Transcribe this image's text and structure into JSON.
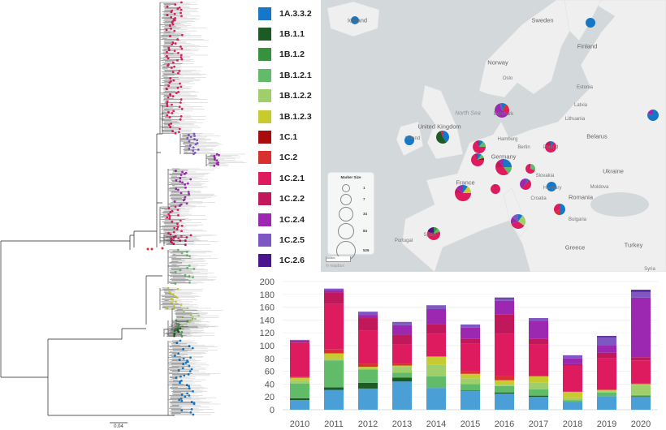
{
  "legend": {
    "items": [
      {
        "label": "1A.3.3.2",
        "color": "#1577c6"
      },
      {
        "label": "1B.1.1",
        "color": "#1e5b24"
      },
      {
        "label": "1B.1.2",
        "color": "#37913d"
      },
      {
        "label": "1B.1.2.1",
        "color": "#62bb69"
      },
      {
        "label": "1B.1.2.2",
        "color": "#9fcf6b"
      },
      {
        "label": "1B.1.2.3",
        "color": "#c7cb30"
      },
      {
        "label": "1C.1",
        "color": "#a80d0d"
      },
      {
        "label": "1C.2",
        "color": "#d9302f"
      },
      {
        "label": "1C.2.1",
        "color": "#df1b5f"
      },
      {
        "label": "1C.2.2",
        "color": "#c0185a"
      },
      {
        "label": "1C.2.4",
        "color": "#9c27b0"
      },
      {
        "label": "1C.2.5",
        "color": "#7e57c2"
      },
      {
        "label": "1C.2.6",
        "color": "#4a148c"
      }
    ]
  },
  "tree": {
    "scale_label": "0.04"
  },
  "map": {
    "labels": {
      "iceland": "Iceland",
      "sweden": "Sweden",
      "finland": "Finland",
      "norway": "Norway",
      "north_sea": "North Sea",
      "uk": "United Kingdom",
      "ireland": "Ireland",
      "denmark": "Denmark",
      "germany": "Germany",
      "poland": "Poland",
      "belarus": "Belarus",
      "ukraine": "Ukraine",
      "france": "France",
      "hungary": "Hungary",
      "romania": "Romania",
      "bulgaria": "Bulgaria",
      "croatia": "Croatia",
      "greece": "Greece",
      "turkey": "Turkey",
      "spain": "Spain",
      "portugal": "Portugal",
      "syria": "Syria",
      "lithuania": "Lithuania",
      "latvia": "Latvia",
      "estonia": "Estonia",
      "hamburg": "Hamburg",
      "berlin": "Berlin",
      "oslo": "Oslo",
      "moldova": "Moldova",
      "slovakia": "Slovakia"
    },
    "marker_size": {
      "title": "Marker Size",
      "values": [
        "1",
        "7",
        "34",
        "84",
        "526"
      ]
    },
    "scale_label": "300km",
    "attribution": "© mapbox",
    "markers": [
      {
        "country": "Iceland",
        "shares": {
          "1A.3.3.2": 1
        }
      },
      {
        "country": "Finland",
        "shares": {
          "1A.3.3.2": 1
        }
      },
      {
        "country": "Russia",
        "shares": {
          "1A.3.3.2": 0.8,
          "1C.2.4": 0.2
        }
      },
      {
        "country": "Denmark",
        "shares": {
          "1A.3.3.2": 0.1,
          "1C.2": 0.1,
          "1C.2.1": 0.15,
          "1C.2.4": 0.6,
          "1C.2.5": 0.05
        }
      },
      {
        "country": "United Kingdom",
        "shares": {
          "1A.3.3.2": 0.4,
          "1B.1.1": 0.55,
          "1C.2.1": 0.05
        }
      },
      {
        "country": "Ireland",
        "shares": {
          "1A.3.3.2": 1
        }
      },
      {
        "country": "Netherlands",
        "shares": {
          "1A.3.3.2": 0.1,
          "1B.1.2.1": 0.15,
          "1C.2.1": 0.65,
          "1C.2.2": 0.1
        }
      },
      {
        "country": "Belgium",
        "shares": {
          "1A.3.3.2": 0.1,
          "1B.1.2.1": 0.1,
          "1C.1": 0.05,
          "1C.2.1": 0.65,
          "1C.2.2": 0.1
        }
      },
      {
        "country": "Germany",
        "shares": {
          "1A.3.3.2": 0.25,
          "1B.1.2.1": 0.15,
          "1C.2.1": 0.35,
          "1C.2.2": 0.15,
          "1C.2.4": 0.1
        }
      },
      {
        "country": "Poland",
        "shares": {
          "1A.3.3.2": 0.1,
          "1C.2.1": 0.7,
          "1C.2.2": 0.2
        }
      },
      {
        "country": "Czechia",
        "shares": {
          "1B.1.2.1": 0.3,
          "1C.2.1": 0.6,
          "1C.2.2": 0.1
        }
      },
      {
        "country": "Austria",
        "shares": {
          "1A.3.3.2": 0.1,
          "1C.2.1": 0.5,
          "1C.2.4": 0.4
        }
      },
      {
        "country": "Switzerland",
        "shares": {
          "1C.2.1": 0.9,
          "1C.2.2": 0.1
        }
      },
      {
        "country": "France",
        "shares": {
          "1A.3.3.2": 0.1,
          "1B.1.2.3": 0.15,
          "1C.2.1": 0.5,
          "1C.2.2": 0.1,
          "1C.2.4": 0.15
        }
      },
      {
        "country": "Hungary",
        "shares": {
          "1A.3.3.2": 1
        }
      },
      {
        "country": "Serbia",
        "shares": {
          "1A.3.3.2": 0.5,
          "1C.2": 0.15,
          "1C.2.1": 0.35
        }
      },
      {
        "country": "Italy",
        "shares": {
          "1A.3.3.2": 0.1,
          "1B.1.2.2": 0.25,
          "1C.2.1": 0.35,
          "1C.2.4": 0.15,
          "1C.2.5": 0.15
        }
      },
      {
        "country": "Spain",
        "shares": {
          "1B.1.2": 0.1,
          "1B.1.2.1": 0.1,
          "1C.2.1": 0.6,
          "1C.2.6": 0.2
        }
      }
    ]
  },
  "chart_data": {
    "type": "bar",
    "stacked": true,
    "categories": [
      "2010",
      "2011",
      "2012",
      "2013",
      "2014",
      "2015",
      "2016",
      "2017",
      "2018",
      "2019",
      "2020"
    ],
    "ylim": [
      0,
      200
    ],
    "yticks": [
      "0",
      "20",
      "40",
      "60",
      "80",
      "100",
      "120",
      "140",
      "160",
      "180",
      "200"
    ],
    "grid": true,
    "xlabel": "",
    "ylabel": "",
    "title": "",
    "series": [
      {
        "name": "1A.3.3.2",
        "color": "#4a9fd7",
        "values": [
          15,
          31,
          33,
          44,
          34,
          29,
          25,
          20,
          12,
          21,
          20
        ]
      },
      {
        "name": "1B.1.1",
        "color": "#1e5b24",
        "values": [
          3,
          4,
          9,
          6,
          0,
          1,
          2,
          2,
          0,
          0,
          1
        ]
      },
      {
        "name": "1B.1.2",
        "color": "#37913d",
        "values": [
          0,
          0,
          0,
          0,
          0,
          0,
          0,
          0,
          0,
          0,
          0
        ]
      },
      {
        "name": "1B.1.2.1",
        "color": "#62bb69",
        "values": [
          23,
          42,
          21,
          8,
          18,
          10,
          10,
          10,
          3,
          6,
          2
        ]
      },
      {
        "name": "1B.1.2.2",
        "color": "#9fcf6b",
        "values": [
          5,
          2,
          1,
          9,
          18,
          9,
          2,
          10,
          3,
          2,
          16
        ]
      },
      {
        "name": "1B.1.2.3",
        "color": "#c7cb30",
        "values": [
          4,
          9,
          3,
          2,
          13,
          7,
          7,
          10,
          10,
          2,
          1
        ]
      },
      {
        "name": "1C.1",
        "color": "#a80d0d",
        "values": [
          0,
          0,
          0,
          0,
          0,
          0,
          0,
          0,
          0,
          0,
          0
        ]
      },
      {
        "name": "1C.2",
        "color": "#d9302f",
        "values": [
          1,
          6,
          5,
          3,
          0,
          4,
          6,
          1,
          0,
          0,
          1
        ]
      },
      {
        "name": "1C.2.1",
        "color": "#df1b5f",
        "values": [
          53,
          71,
          51,
          30,
          35,
          43,
          66,
          49,
          41,
          49,
          36
        ]
      },
      {
        "name": "1C.2.2",
        "color": "#c0185a",
        "values": [
          1,
          18,
          20,
          15,
          15,
          8,
          31,
          9,
          2,
          9,
          5
        ]
      },
      {
        "name": "1C.2.4",
        "color": "#9c27b0",
        "values": [
          3,
          4,
          5,
          15,
          24,
          17,
          21,
          28,
          9,
          11,
          93
        ]
      },
      {
        "name": "1C.2.5",
        "color": "#7e57c2",
        "values": [
          1,
          2,
          5,
          5,
          6,
          5,
          4,
          4,
          5,
          13,
          9
        ]
      },
      {
        "name": "1C.2.6",
        "color": "#4a148c",
        "values": [
          0,
          0,
          0,
          0,
          0,
          0,
          1,
          0,
          0,
          2,
          3
        ]
      }
    ]
  }
}
